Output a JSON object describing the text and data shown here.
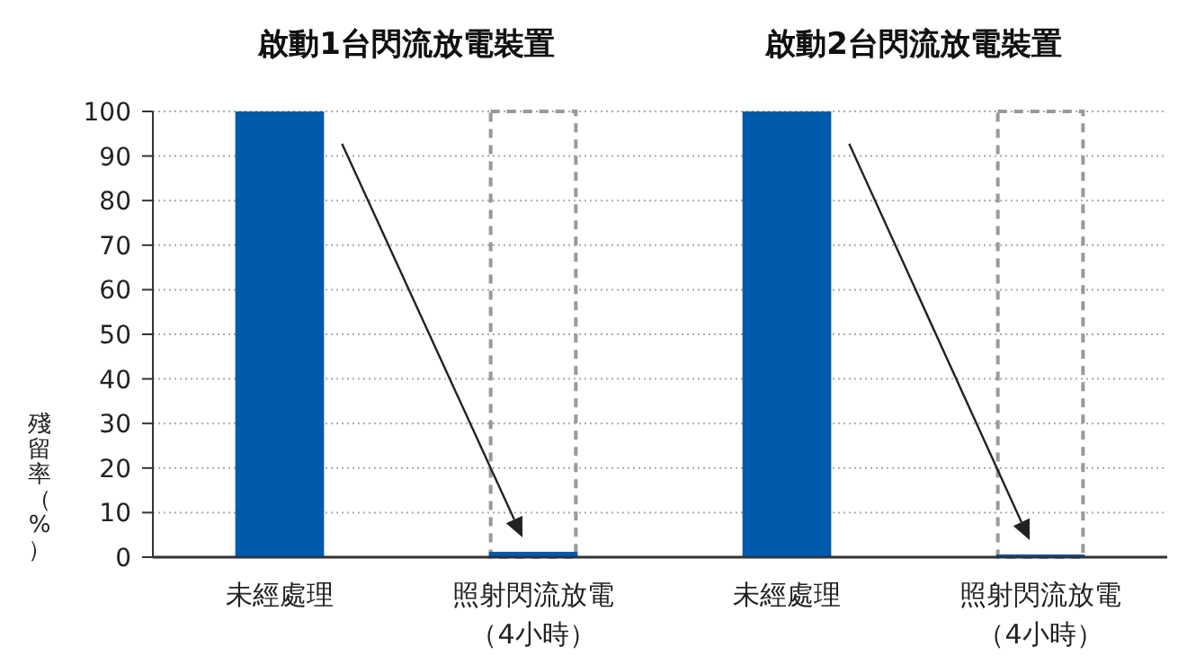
{
  "chart_data": [
    {
      "type": "bar",
      "title": "啟動1台閃流放電裝置",
      "ylabel": "殘留率（%）",
      "categories": [
        "未經處理",
        "照射閃流放電（4小時）"
      ],
      "ylim": [
        0,
        100
      ],
      "yticks": [
        0,
        10,
        20,
        30,
        40,
        50,
        60,
        70,
        80,
        90,
        100
      ],
      "grid": "y",
      "series": [
        {
          "color": "#005bac",
          "values": [
            100,
            1.2
          ]
        },
        {
          "color": "#999999",
          "line_style": "dashed",
          "values": [
            null,
            100
          ]
        }
      ]
    },
    {
      "type": "bar",
      "title": "啟動2台閃流放電裝置",
      "categories": [
        "未經處理",
        "照射閃流放電（4小時）"
      ],
      "ylim": [
        0,
        100
      ],
      "yticks": [
        0,
        10,
        20,
        30,
        40,
        50,
        60,
        70,
        80,
        90,
        100
      ],
      "grid": "y",
      "tick_labels": "x",
      "series": [
        {
          "color": "#005bac",
          "values": [
            100,
            0.6
          ]
        },
        {
          "color": "#999999",
          "line_style": "dashed",
          "values": [
            null,
            100
          ]
        }
      ]
    }
  ]
}
